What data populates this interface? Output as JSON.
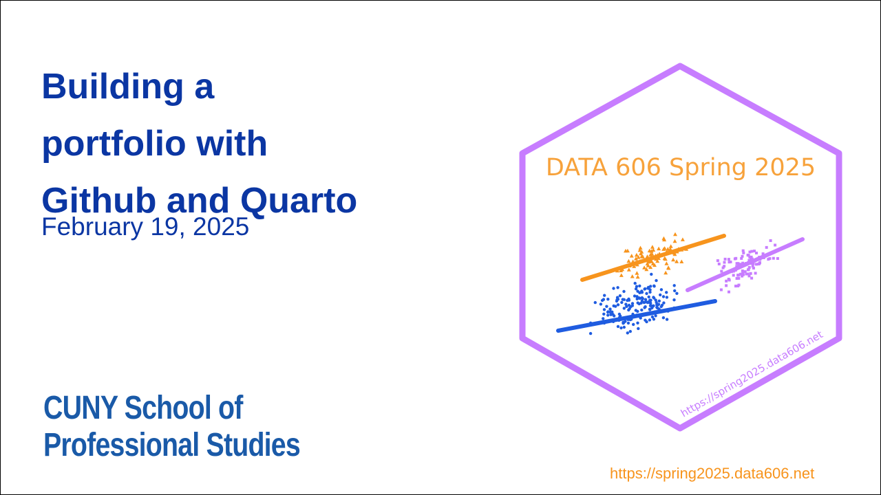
{
  "slide": {
    "title_line_1": "Building a",
    "title_line_2": "portfolio with",
    "title_line_3": "Github and Quarto",
    "date": "February 19, 2025",
    "org_line_1": "CUNY School of",
    "org_line_2": "Professional Studies",
    "footer_url": "https://spring2025.data606.net"
  },
  "hex_sticker": {
    "title": "DATA 606 Spring 2025",
    "url": "https://spring2025.data606.net",
    "colors": {
      "border": "#c77dff",
      "title": "#f7a23b",
      "orange_series": "#f7941d",
      "blue_series": "#1f5ce0",
      "purple_series": "#c77dff"
    }
  },
  "colors": {
    "title": "#0b36a3",
    "logo": "#1a5aa8",
    "footer_url": "#f7941d"
  }
}
